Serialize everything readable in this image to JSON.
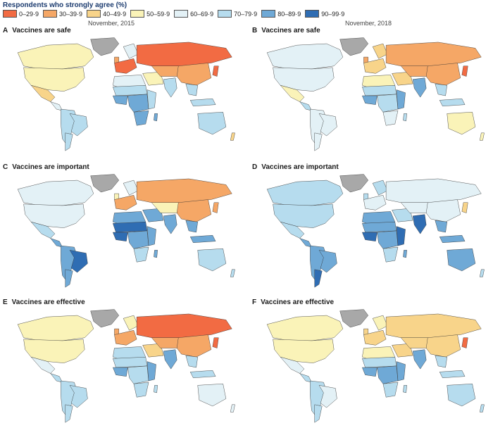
{
  "legend": {
    "title": "Respondents who strongly agree (%)",
    "bins": [
      {
        "label": "0–29·9",
        "color": "#f26b43"
      },
      {
        "label": "30–39·9",
        "color": "#f5a766"
      },
      {
        "label": "40–49·9",
        "color": "#f8d48a"
      },
      {
        "label": "50–59·9",
        "color": "#faf3b8"
      },
      {
        "label": "60–69·9",
        "color": "#e3f1f6"
      },
      {
        "label": "70–79·9",
        "color": "#b6dcee"
      },
      {
        "label": "80–89·9",
        "color": "#6fa9d6"
      },
      {
        "label": "90–99·9",
        "color": "#2f6db3"
      }
    ],
    "no_data_color": "#a8a8a8"
  },
  "columns": [
    "November, 2015",
    "November, 2018"
  ],
  "panels": [
    {
      "letter": "A",
      "title": "Vaccines are safe",
      "regions": {
        "greenland": "nd",
        "canada": 3,
        "usa": 3,
        "mexico": 2,
        "central_am": 4,
        "south_am": 5,
        "brazil": 5,
        "argentina": 5,
        "europe_w": 0,
        "uk": 1,
        "scandinavia": 4,
        "russia": 0,
        "north_africa": 4,
        "sahel": 5,
        "west_africa": 6,
        "central_africa": 6,
        "east_africa": 5,
        "south_africa": 6,
        "madagascar": 6,
        "middle_east": 3,
        "central_asia": 1,
        "india": 5,
        "china": 1,
        "se_asia": 5,
        "japan": 0,
        "indonesia": 5,
        "australia": 5,
        "nz": 2
      }
    },
    {
      "letter": "B",
      "title": "Vaccines are safe",
      "regions": {
        "greenland": "nd",
        "canada": 4,
        "usa": 4,
        "mexico": 3,
        "central_am": 5,
        "south_am": 4,
        "brazil": 4,
        "argentina": 4,
        "europe_w": 2,
        "uk": 1,
        "scandinavia": 2,
        "russia": 1,
        "north_africa": 3,
        "sahel": 5,
        "west_africa": 6,
        "central_africa": 5,
        "east_africa": 6,
        "south_africa": 4,
        "madagascar": 5,
        "middle_east": 2,
        "central_asia": 1,
        "india": 6,
        "china": 1,
        "se_asia": 5,
        "japan": 0,
        "indonesia": 5,
        "australia": 3,
        "nz": 3
      }
    },
    {
      "letter": "C",
      "title": "Vaccines are important",
      "regions": {
        "greenland": "nd",
        "canada": 4,
        "usa": 4,
        "mexico": 5,
        "central_am": 6,
        "south_am": 6,
        "brazil": 7,
        "argentina": 6,
        "europe_w": 1,
        "uk": 3,
        "scandinavia": 4,
        "russia": 1,
        "north_africa": 6,
        "sahel": 7,
        "west_africa": 7,
        "central_africa": 6,
        "east_africa": 6,
        "south_africa": 5,
        "madagascar": 6,
        "middle_east": 6,
        "central_asia": 3,
        "india": 6,
        "china": 1,
        "se_asia": 6,
        "japan": 1,
        "indonesia": 6,
        "australia": 5,
        "nz": 5
      }
    },
    {
      "letter": "D",
      "title": "Vaccines are important",
      "regions": {
        "greenland": "nd",
        "canada": 5,
        "usa": 5,
        "mexico": 5,
        "central_am": 6,
        "south_am": 6,
        "brazil": 6,
        "argentina": 7,
        "europe_w": 4,
        "uk": 5,
        "scandinavia": 5,
        "russia": 4,
        "north_africa": 6,
        "sahel": 6,
        "west_africa": 7,
        "central_africa": 6,
        "east_africa": 7,
        "south_africa": 5,
        "madagascar": 6,
        "middle_east": 5,
        "central_asia": 4,
        "india": 7,
        "china": 4,
        "se_asia": 6,
        "japan": 2,
        "indonesia": 6,
        "australia": 6,
        "nz": 5
      }
    },
    {
      "letter": "E",
      "title": "Vaccines are effective",
      "regions": {
        "greenland": "nd",
        "canada": 3,
        "usa": 3,
        "mexico": 4,
        "central_am": 5,
        "south_am": 5,
        "brazil": 5,
        "argentina": 5,
        "europe_w": 1,
        "uk": 1,
        "scandinavia": 3,
        "russia": 0,
        "north_africa": 5,
        "sahel": 5,
        "west_africa": 6,
        "central_africa": 5,
        "east_africa": 6,
        "south_africa": 5,
        "madagascar": 5,
        "middle_east": 2,
        "central_asia": 1,
        "india": 6,
        "china": 1,
        "se_asia": 5,
        "japan": 0,
        "indonesia": 5,
        "australia": 4,
        "nz": 4
      }
    },
    {
      "letter": "F",
      "title": "Vaccines are effective",
      "regions": {
        "greenland": "nd",
        "canada": 3,
        "usa": 3,
        "mexico": 4,
        "central_am": 5,
        "south_am": 5,
        "brazil": 4,
        "argentina": 5,
        "europe_w": 2,
        "uk": 2,
        "scandinavia": 3,
        "russia": 2,
        "north_africa": 3,
        "sahel": 5,
        "west_africa": 6,
        "central_africa": 6,
        "east_africa": 6,
        "south_africa": 5,
        "madagascar": 5,
        "middle_east": 2,
        "central_asia": 2,
        "india": 6,
        "china": 2,
        "se_asia": 5,
        "japan": 0,
        "indonesia": 5,
        "australia": 5,
        "nz": 5
      }
    }
  ]
}
